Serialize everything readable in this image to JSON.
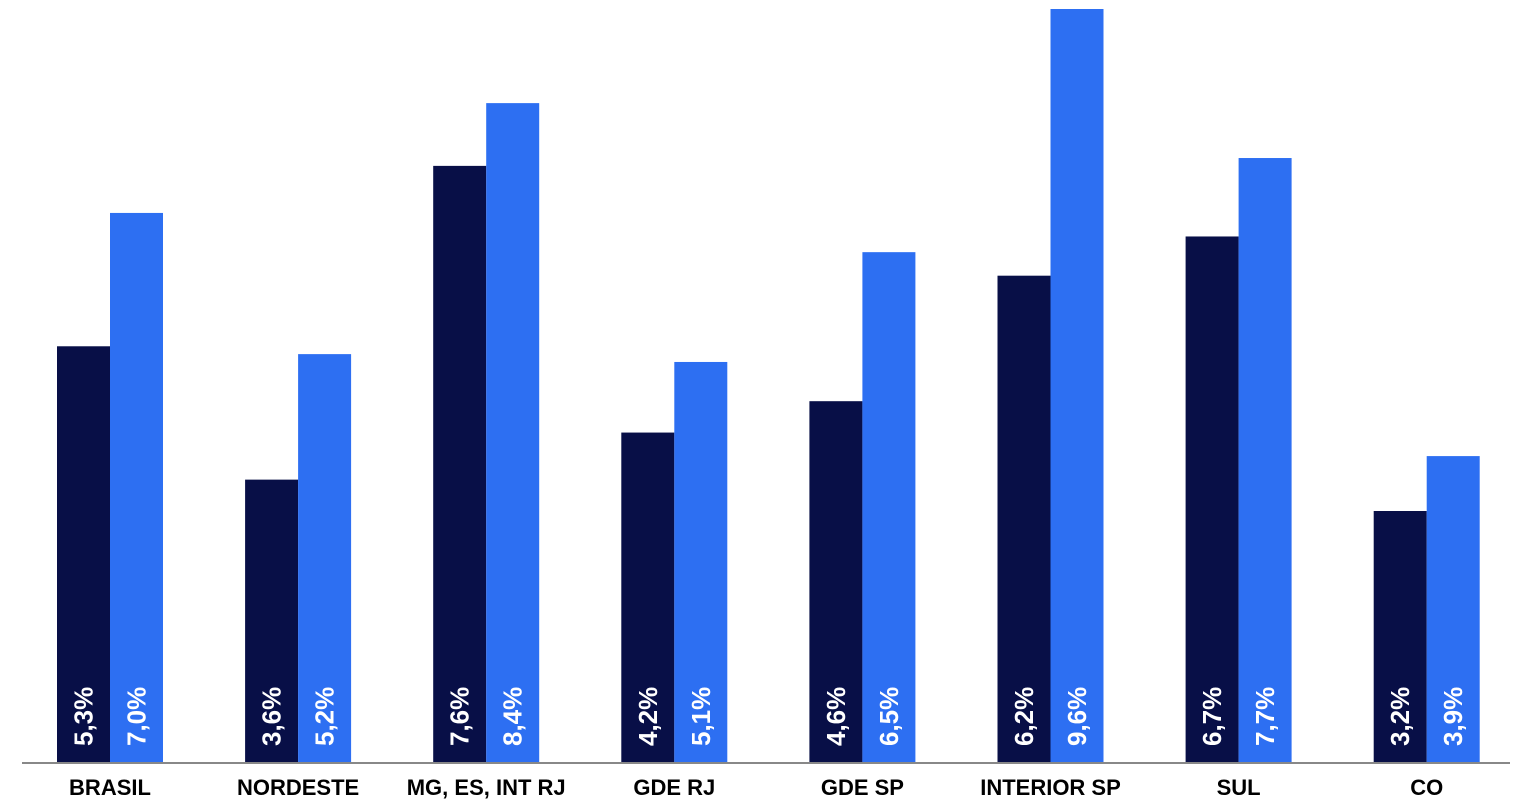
{
  "chart_data": {
    "type": "bar",
    "title": "",
    "xlabel": "",
    "ylabel": "",
    "categories": [
      "BRASIL",
      "NORDESTE",
      "MG, ES, INT RJ",
      "GDE RJ",
      "GDE SP",
      "INTERIOR SP",
      "SUL",
      "CO"
    ],
    "series": [
      {
        "color": "#080f47",
        "values": [
          5.3,
          3.6,
          7.6,
          4.2,
          4.6,
          6.2,
          6.7,
          3.2
        ],
        "labels": [
          "5,3%",
          "3,6%",
          "7,6%",
          "4,2%",
          "4,6%",
          "6,2%",
          "6,7%",
          "3,2%"
        ]
      },
      {
        "color": "#2d6ff2",
        "values": [
          7.0,
          5.2,
          8.4,
          5.1,
          6.5,
          9.6,
          7.7,
          3.9
        ],
        "labels": [
          "7,0%",
          "5,2%",
          "8,4%",
          "5,1%",
          "6,5%",
          "9,6%",
          "7,7%",
          "3,9%"
        ]
      }
    ],
    "ylim": [
      0,
      9.6
    ],
    "grid": false,
    "legend": "none",
    "value_label_orientation": "vertical",
    "baseline_color": "#888888"
  }
}
